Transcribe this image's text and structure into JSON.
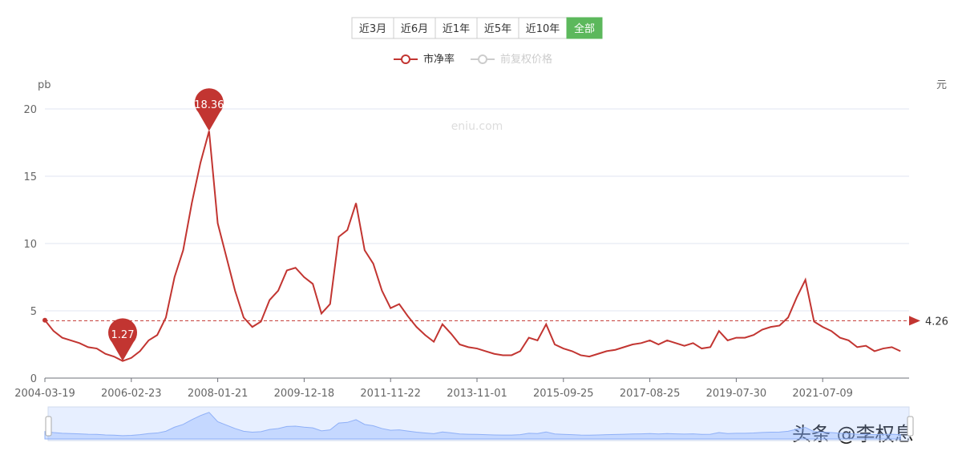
{
  "range_buttons": [
    "近3月",
    "近6月",
    "近1年",
    "近5年",
    "近10年",
    "全部"
  ],
  "active_button": 5,
  "watermark": "eniu.com",
  "footer": "头条 @李权息",
  "chart_data": {
    "type": "line",
    "ylabel": "pb",
    "y2label": "元",
    "categories": [
      "2004-03-19",
      null,
      null,
      null,
      null,
      null,
      null,
      null,
      null,
      null,
      "2006-02-23",
      null,
      null,
      null,
      null,
      null,
      null,
      null,
      null,
      null,
      "2008-01-21",
      null,
      null,
      null,
      null,
      null,
      null,
      null,
      null,
      null,
      "2009-12-18",
      null,
      null,
      null,
      null,
      null,
      null,
      null,
      null,
      null,
      "2011-11-22",
      null,
      null,
      null,
      null,
      null,
      null,
      null,
      null,
      null,
      "2013-11-01",
      null,
      null,
      null,
      null,
      null,
      null,
      null,
      null,
      null,
      "2015-09-25",
      null,
      null,
      null,
      null,
      null,
      null,
      null,
      null,
      null,
      "2017-08-25",
      null,
      null,
      null,
      null,
      null,
      null,
      null,
      null,
      null,
      "2019-07-30",
      null,
      null,
      null,
      null,
      null,
      null,
      null,
      null,
      null,
      "2021-07-09",
      null,
      null,
      null,
      null,
      null,
      null,
      null,
      null,
      null
    ],
    "series": [
      {
        "name": "市净率",
        "color": "#c23531",
        "values": [
          4.3,
          3.5,
          3.0,
          2.8,
          2.6,
          2.3,
          2.2,
          1.8,
          1.6,
          1.27,
          1.5,
          2.0,
          2.8,
          3.2,
          4.5,
          7.5,
          9.5,
          13,
          16,
          18.36,
          11.5,
          9.0,
          6.5,
          4.5,
          3.8,
          4.2,
          5.8,
          6.5,
          8.0,
          8.2,
          7.5,
          7.0,
          4.8,
          5.5,
          10.5,
          11.0,
          13.0,
          9.5,
          8.5,
          6.5,
          5.2,
          5.5,
          4.6,
          3.8,
          3.2,
          2.7,
          4.0,
          3.3,
          2.5,
          2.3,
          2.2,
          2.0,
          1.8,
          1.7,
          1.7,
          2.0,
          3.0,
          2.8,
          4.0,
          2.5,
          2.2,
          2.0,
          1.7,
          1.6,
          1.8,
          2.0,
          2.1,
          2.3,
          2.5,
          2.6,
          2.8,
          2.5,
          2.8,
          2.6,
          2.4,
          2.6,
          2.2,
          2.3,
          3.5,
          2.8,
          3.0,
          3.0,
          3.2,
          3.6,
          3.8,
          3.9,
          4.5,
          6.0,
          7.3,
          4.2,
          3.8,
          3.5,
          3.0,
          2.8,
          2.3,
          2.4,
          2.0,
          2.2,
          2.3,
          2.0
        ]
      }
    ],
    "inactive_series": {
      "name": "前复权价格",
      "color": "#cccccc"
    },
    "max_index": 19,
    "min_index": 9,
    "markline": 4.26,
    "ylim": [
      0,
      20
    ],
    "yticks": [
      0,
      5,
      10,
      15,
      20
    ],
    "grid": true
  }
}
